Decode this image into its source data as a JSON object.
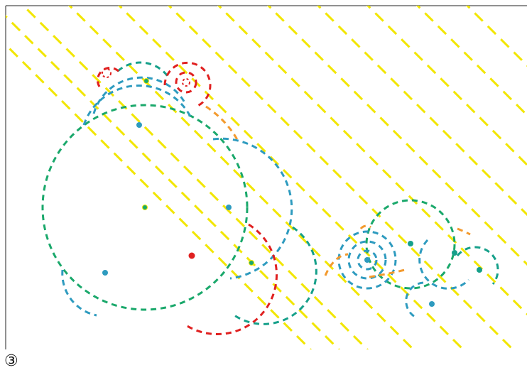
{
  "figure": {
    "label": "③",
    "colors": {
      "yellow": "#f2e600",
      "red": "#e02020",
      "green": "#1aa86b",
      "blue": "#2e9bbf",
      "teal": "#16a08a",
      "orange": "#f39a2e"
    }
  }
}
